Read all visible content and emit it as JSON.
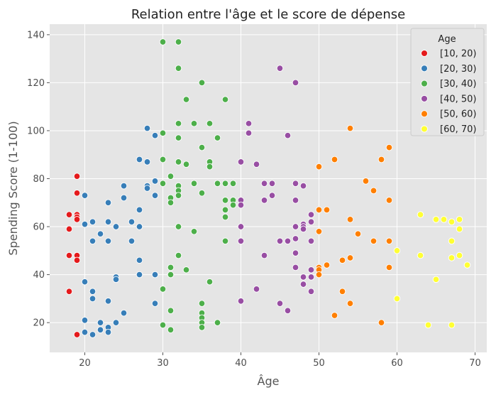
{
  "chart_data": {
    "type": "scatter",
    "title": "Relation entre l'âge et le score de dépense",
    "xlabel": "Âge",
    "ylabel": "Spending Score (1-100)",
    "xlim": [
      15.5,
      71.5
    ],
    "ylim": [
      7.6,
      144.4
    ],
    "xticks": [
      20,
      30,
      40,
      50,
      60,
      70
    ],
    "yticks": [
      20,
      40,
      60,
      80,
      100,
      120,
      140
    ],
    "grid": true,
    "legend": {
      "title": "Age",
      "position": "top-right"
    },
    "series": [
      {
        "name": "[10, 20)",
        "color": "#e41a1c",
        "points": [
          [
            18,
            65
          ],
          [
            18,
            59
          ],
          [
            18,
            48
          ],
          [
            18,
            33
          ],
          [
            19,
            81
          ],
          [
            19,
            74
          ],
          [
            19,
            65
          ],
          [
            19,
            64
          ],
          [
            19,
            63
          ],
          [
            19,
            48
          ],
          [
            19,
            46
          ],
          [
            19,
            15
          ]
        ]
      },
      {
        "name": "[20, 30)",
        "color": "#377eb8",
        "points": [
          [
            20,
            73
          ],
          [
            20,
            61
          ],
          [
            20,
            37
          ],
          [
            20,
            21
          ],
          [
            20,
            16
          ],
          [
            21,
            62
          ],
          [
            21,
            54
          ],
          [
            21,
            33
          ],
          [
            21,
            30
          ],
          [
            21,
            15
          ],
          [
            22,
            57
          ],
          [
            22,
            20
          ],
          [
            22,
            17
          ],
          [
            23,
            70
          ],
          [
            23,
            62
          ],
          [
            23,
            54
          ],
          [
            23,
            29
          ],
          [
            23,
            18
          ],
          [
            23,
            16
          ],
          [
            24,
            60
          ],
          [
            24,
            39
          ],
          [
            24,
            38
          ],
          [
            24,
            20
          ],
          [
            25,
            77
          ],
          [
            25,
            72
          ],
          [
            25,
            24
          ],
          [
            26,
            62
          ],
          [
            26,
            54
          ],
          [
            27,
            88
          ],
          [
            27,
            67
          ],
          [
            27,
            60
          ],
          [
            27,
            46
          ],
          [
            27,
            40
          ],
          [
            28,
            101
          ],
          [
            28,
            87
          ],
          [
            28,
            77
          ],
          [
            28,
            76
          ],
          [
            29,
            98
          ],
          [
            29,
            79
          ],
          [
            29,
            73
          ],
          [
            29,
            40
          ],
          [
            29,
            28
          ]
        ]
      },
      {
        "name": "[30, 40)",
        "color": "#4daf4a",
        "points": [
          [
            30,
            137
          ],
          [
            30,
            99
          ],
          [
            30,
            88
          ],
          [
            30,
            78
          ],
          [
            30,
            34
          ],
          [
            30,
            19
          ],
          [
            31,
            81
          ],
          [
            31,
            72
          ],
          [
            31,
            70
          ],
          [
            31,
            43
          ],
          [
            31,
            40
          ],
          [
            31,
            25
          ],
          [
            31,
            17
          ],
          [
            32,
            137
          ],
          [
            32,
            126
          ],
          [
            32,
            103
          ],
          [
            32,
            97
          ],
          [
            32,
            87
          ],
          [
            32,
            77
          ],
          [
            32,
            75
          ],
          [
            32,
            73
          ],
          [
            32,
            60
          ],
          [
            32,
            48
          ],
          [
            33,
            113
          ],
          [
            33,
            86
          ],
          [
            33,
            42
          ],
          [
            34,
            103
          ],
          [
            34,
            78
          ],
          [
            34,
            58
          ],
          [
            35,
            120
          ],
          [
            35,
            93
          ],
          [
            35,
            74
          ],
          [
            35,
            28
          ],
          [
            35,
            24
          ],
          [
            35,
            22
          ],
          [
            35,
            20
          ],
          [
            35,
            18
          ],
          [
            36,
            103
          ],
          [
            36,
            87
          ],
          [
            36,
            85
          ],
          [
            36,
            37
          ],
          [
            37,
            97
          ],
          [
            37,
            78
          ],
          [
            37,
            20
          ],
          [
            38,
            113
          ],
          [
            38,
            78
          ],
          [
            38,
            71
          ],
          [
            38,
            67
          ],
          [
            38,
            64
          ],
          [
            38,
            54
          ],
          [
            39,
            78
          ],
          [
            39,
            71
          ],
          [
            39,
            69
          ]
        ]
      },
      {
        "name": "[40, 50)",
        "color": "#984ea3",
        "points": [
          [
            40,
            87
          ],
          [
            40,
            71
          ],
          [
            40,
            69
          ],
          [
            40,
            60
          ],
          [
            40,
            54
          ],
          [
            40,
            29
          ],
          [
            41,
            103
          ],
          [
            41,
            99
          ],
          [
            42,
            86
          ],
          [
            42,
            34
          ],
          [
            43,
            78
          ],
          [
            43,
            71
          ],
          [
            43,
            48
          ],
          [
            44,
            78
          ],
          [
            44,
            73
          ],
          [
            45,
            126
          ],
          [
            45,
            54
          ],
          [
            45,
            28
          ],
          [
            46,
            98
          ],
          [
            46,
            54
          ],
          [
            46,
            25
          ],
          [
            47,
            120
          ],
          [
            47,
            78
          ],
          [
            47,
            71
          ],
          [
            47,
            60
          ],
          [
            47,
            55
          ],
          [
            47,
            49
          ],
          [
            47,
            43
          ],
          [
            48,
            77
          ],
          [
            48,
            61
          ],
          [
            48,
            60
          ],
          [
            48,
            59
          ],
          [
            48,
            39
          ],
          [
            48,
            36
          ],
          [
            49,
            65
          ],
          [
            49,
            62
          ],
          [
            49,
            54
          ],
          [
            49,
            42
          ],
          [
            49,
            39
          ],
          [
            49,
            33
          ]
        ]
      },
      {
        "name": "[50, 60)",
        "color": "#ff7f00",
        "points": [
          [
            50,
            85
          ],
          [
            50,
            67
          ],
          [
            50,
            58
          ],
          [
            50,
            43
          ],
          [
            50,
            42
          ],
          [
            50,
            40
          ],
          [
            51,
            67
          ],
          [
            51,
            44
          ],
          [
            52,
            88
          ],
          [
            52,
            23
          ],
          [
            53,
            46
          ],
          [
            53,
            33
          ],
          [
            54,
            101
          ],
          [
            54,
            63
          ],
          [
            54,
            47
          ],
          [
            54,
            28
          ],
          [
            55,
            57
          ],
          [
            56,
            79
          ],
          [
            57,
            75
          ],
          [
            57,
            54
          ],
          [
            58,
            88
          ],
          [
            58,
            20
          ],
          [
            59,
            93
          ],
          [
            59,
            71
          ],
          [
            59,
            54
          ],
          [
            59,
            43
          ]
        ]
      },
      {
        "name": "[60, 70)",
        "color": "#ffff33",
        "points": [
          [
            60,
            50
          ],
          [
            60,
            30
          ],
          [
            63,
            65
          ],
          [
            63,
            48
          ],
          [
            64,
            19
          ],
          [
            65,
            63
          ],
          [
            65,
            38
          ],
          [
            66,
            63
          ],
          [
            67,
            62
          ],
          [
            67,
            54
          ],
          [
            67,
            47
          ],
          [
            67,
            19
          ],
          [
            68,
            63
          ],
          [
            68,
            59
          ],
          [
            68,
            48
          ],
          [
            69,
            44
          ]
        ]
      }
    ]
  }
}
